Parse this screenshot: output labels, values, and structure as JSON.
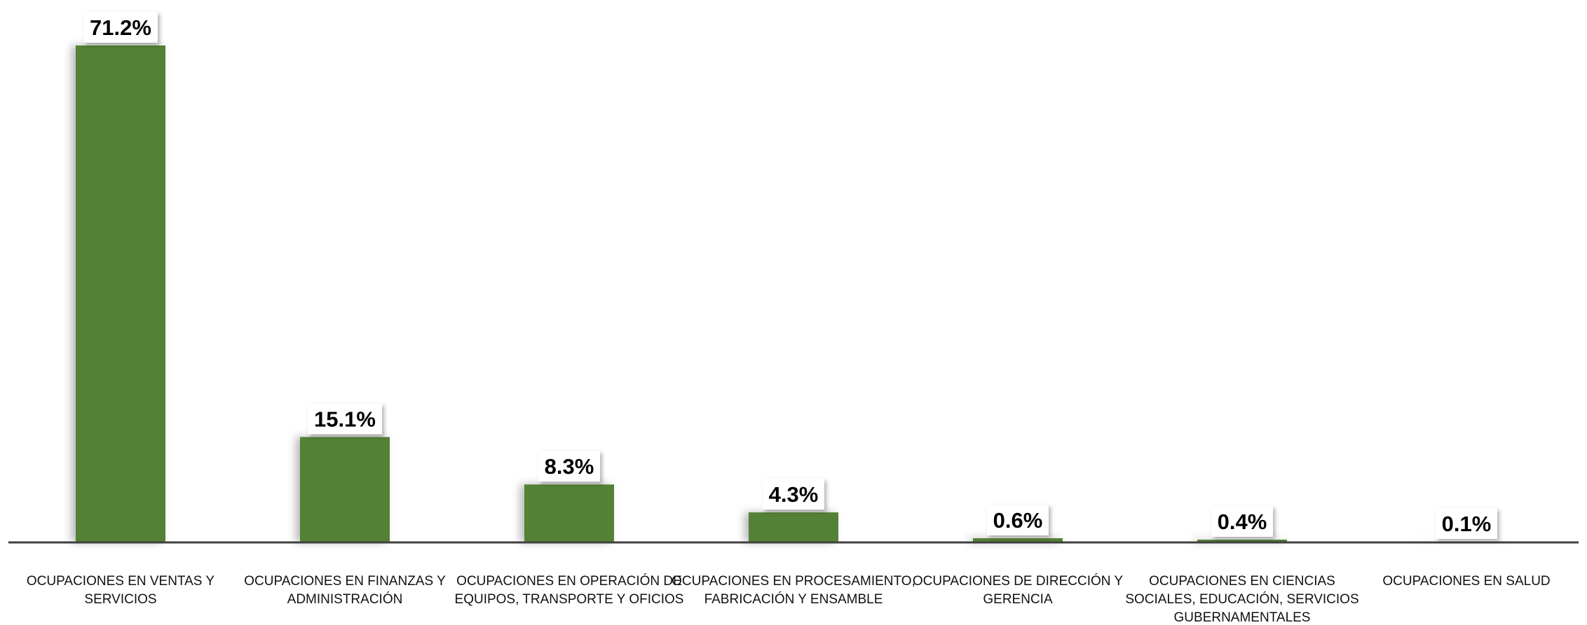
{
  "colors": {
    "bar": "#538135",
    "axis": "#404040",
    "label_bg": "#ffffff"
  },
  "chart_data": {
    "type": "bar",
    "title": "",
    "xlabel": "",
    "ylabel": "",
    "ylim": [
      0,
      72
    ],
    "grid": false,
    "categories": [
      [
        "OCUPACIONES EN VENTAS Y",
        "SERVICIOS"
      ],
      [
        "OCUPACIONES EN FINANZAS Y",
        "ADMINISTRACIÓN"
      ],
      [
        "OCUPACIONES EN OPERACIÓN DE",
        "EQUIPOS, TRANSPORTE Y OFICIOS"
      ],
      [
        "OCUPACIONES EN PROCESAMIENTO,",
        "FABRICACIÓN Y ENSAMBLE"
      ],
      [
        "OCUPACIONES DE DIRECCIÓN Y",
        "GERENCIA"
      ],
      [
        "OCUPACIONES EN CIENCIAS",
        "SOCIALES, EDUCACIÓN, SERVICIOS",
        "GUBERNAMENTALES"
      ],
      [
        "OCUPACIONES EN SALUD"
      ]
    ],
    "values": [
      71.2,
      15.1,
      8.3,
      4.3,
      0.6,
      0.4,
      0.1
    ],
    "data_labels": [
      "71.2%",
      "15.1%",
      "8.3%",
      "4.3%",
      "0.6%",
      "0.4%",
      "0.1%"
    ]
  }
}
